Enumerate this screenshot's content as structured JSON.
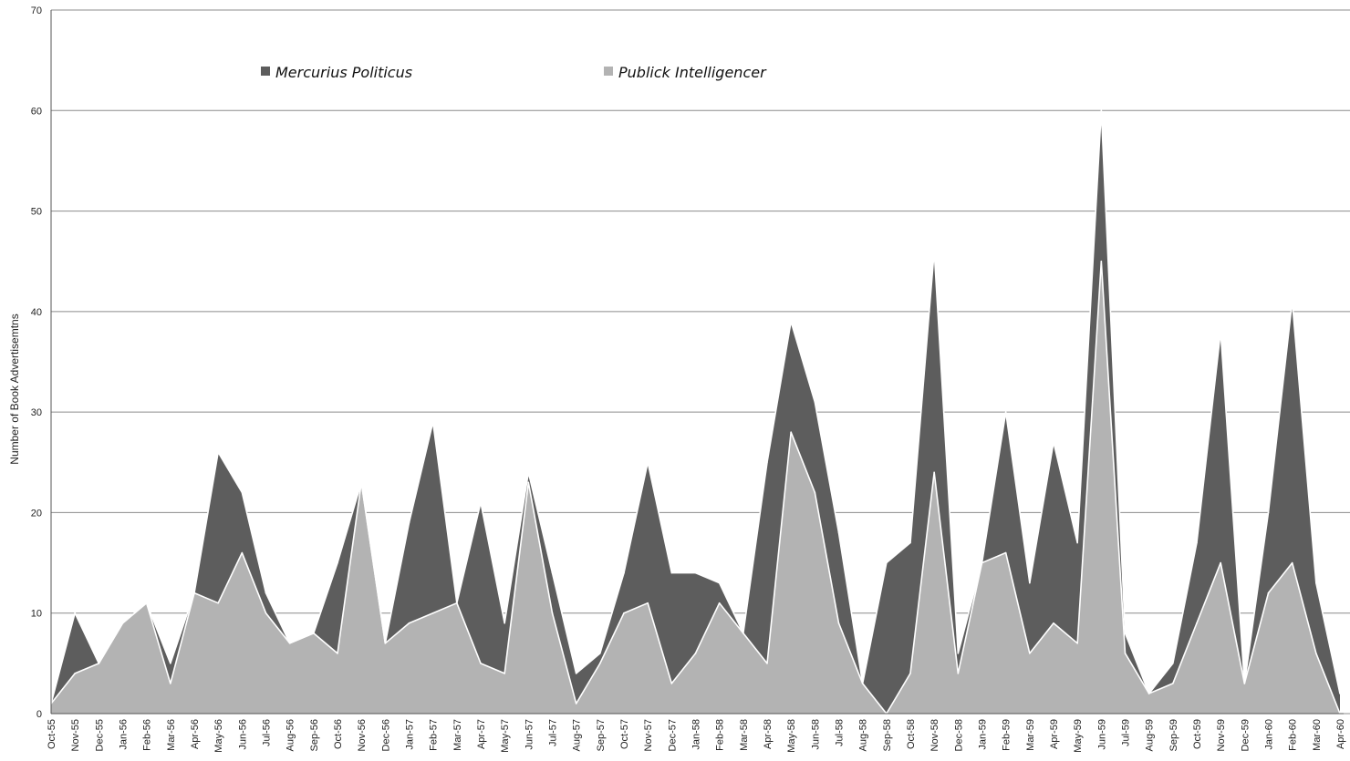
{
  "chart_data": {
    "type": "area",
    "stacked": true,
    "title": "",
    "xlabel": "",
    "ylabel": "Number of Book Advertisemtns",
    "ylim": [
      0,
      70
    ],
    "yticks": [
      0,
      10,
      20,
      30,
      40,
      50,
      60,
      70
    ],
    "grid": true,
    "legend_position": "top-left",
    "categories": [
      "Oct-55",
      "Nov-55",
      "Dec-55",
      "Jan-56",
      "Feb-56",
      "Mar-56",
      "Apr-56",
      "May-56",
      "Jun-56",
      "Jul-56",
      "Aug-56",
      "Sep-56",
      "Oct-56",
      "Nov-56",
      "Dec-56",
      "Jan-57",
      "Feb-57",
      "Mar-57",
      "Apr-57",
      "May-57",
      "Jun-57",
      "Jul-57",
      "Aug-57",
      "Sep-57",
      "Oct-57",
      "Nov-57",
      "Dec-57",
      "Jan-58",
      "Feb-58",
      "Mar-58",
      "Apr-58",
      "May-58",
      "Jun-58",
      "Jul-58",
      "Aug-58",
      "Sep-58",
      "Oct-58",
      "Nov-58",
      "Dec-58",
      "Jan-59",
      "Feb-59",
      "Mar-59",
      "Apr-59",
      "May-59",
      "Jun-59",
      "Jul-59",
      "Aug-59",
      "Sep-59",
      "Oct-59",
      "Nov-59",
      "Dec-59",
      "Jan-60",
      "Feb-60",
      "Mar-60",
      "Apr-60"
    ],
    "series": [
      {
        "name": "Publick Intelligencer",
        "color": "#b3b3b3",
        "values": [
          1,
          4,
          5,
          9,
          11,
          3,
          12,
          11,
          16,
          10,
          7,
          8,
          6,
          23,
          7,
          9,
          10,
          11,
          5,
          4,
          23,
          10,
          1,
          5,
          10,
          11,
          3,
          6,
          11,
          8,
          5,
          28,
          22,
          9,
          3,
          0,
          4,
          24,
          4,
          15,
          16,
          6,
          9,
          7,
          45,
          6,
          2,
          3,
          9,
          15,
          3,
          12,
          15,
          6,
          0
        ]
      },
      {
        "name": "Mercurius Politicus",
        "color": "#5d5d5d",
        "values": [
          0,
          6,
          0,
          0,
          0,
          2,
          0,
          15,
          6,
          2,
          0,
          0,
          9,
          0,
          0,
          10,
          19,
          0,
          16,
          5,
          1,
          4,
          3,
          1,
          4,
          14,
          11,
          8,
          2,
          0,
          20,
          11,
          9,
          9,
          0,
          15,
          13,
          22,
          2,
          0,
          14,
          7,
          18,
          10,
          15,
          2,
          0,
          2,
          8,
          23,
          0,
          8,
          26,
          7,
          2
        ]
      }
    ]
  }
}
